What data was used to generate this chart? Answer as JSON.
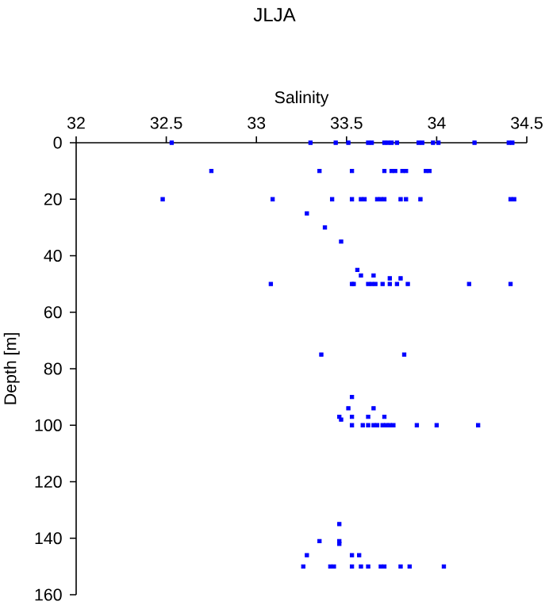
{
  "chart_data": {
    "type": "scatter",
    "title": "JLJA",
    "xlabel": "Salinity",
    "ylabel": "Depth [m]",
    "xlim": [
      32,
      34.5
    ],
    "xticks": [
      32,
      32.5,
      33,
      33.5,
      34,
      34.5
    ],
    "ylim": [
      160,
      0
    ],
    "yticks": [
      0,
      20,
      40,
      60,
      80,
      100,
      120,
      140,
      160
    ],
    "marker": "square",
    "series": [
      {
        "color": "#0000ff",
        "x": [
          32.53,
          33.3,
          33.44,
          33.51,
          33.62,
          33.64,
          33.71,
          33.73,
          33.75,
          33.78,
          33.9,
          33.92,
          33.98,
          34.01,
          34.21,
          34.4,
          34.42,
          32.75,
          33.35,
          33.53,
          33.71,
          33.75,
          33.77,
          33.81,
          33.83,
          33.94,
          33.96,
          32.48,
          33.09,
          33.42,
          33.53,
          33.58,
          33.6,
          33.67,
          33.69,
          33.71,
          33.8,
          33.83,
          33.91,
          34.41,
          34.43,
          33.28,
          33.38,
          33.47,
          33.56,
          33.58,
          33.65,
          33.74,
          33.8,
          33.08,
          33.53,
          33.54,
          33.62,
          33.64,
          33.66,
          33.7,
          33.74,
          33.78,
          33.84,
          34.18,
          34.41,
          33.36,
          33.82,
          33.53,
          33.51,
          33.65,
          33.46,
          33.47,
          33.53,
          33.62,
          33.71,
          33.53,
          33.59,
          33.62,
          33.65,
          33.67,
          33.7,
          33.72,
          33.74,
          33.76,
          33.89,
          34.0,
          34.23,
          33.46,
          33.35,
          33.46,
          33.46,
          33.28,
          33.53,
          33.57,
          33.26,
          33.41,
          33.43,
          33.53,
          33.58,
          33.62,
          33.69,
          33.71,
          33.8,
          33.85,
          34.04
        ],
        "values": [
          0,
          0,
          0,
          0,
          0,
          0,
          0,
          0,
          0,
          0,
          0,
          0,
          0,
          0,
          0,
          0,
          0,
          10,
          10,
          10,
          10,
          10,
          10,
          10,
          10,
          10,
          10,
          20,
          20,
          20,
          20,
          20,
          20,
          20,
          20,
          20,
          20,
          20,
          20,
          20,
          20,
          25,
          30,
          35,
          45,
          47,
          47,
          48,
          48,
          50,
          50,
          50,
          50,
          50,
          50,
          50,
          50,
          50,
          50,
          50,
          50,
          75,
          75,
          90,
          94,
          94,
          97,
          98,
          97,
          97,
          97,
          100,
          100,
          100,
          100,
          100,
          100,
          100,
          100,
          100,
          100,
          100,
          100,
          135,
          141,
          141,
          142,
          146,
          146,
          146,
          150,
          150,
          150,
          150,
          150,
          150,
          150,
          150,
          150,
          150,
          150
        ]
      }
    ]
  }
}
